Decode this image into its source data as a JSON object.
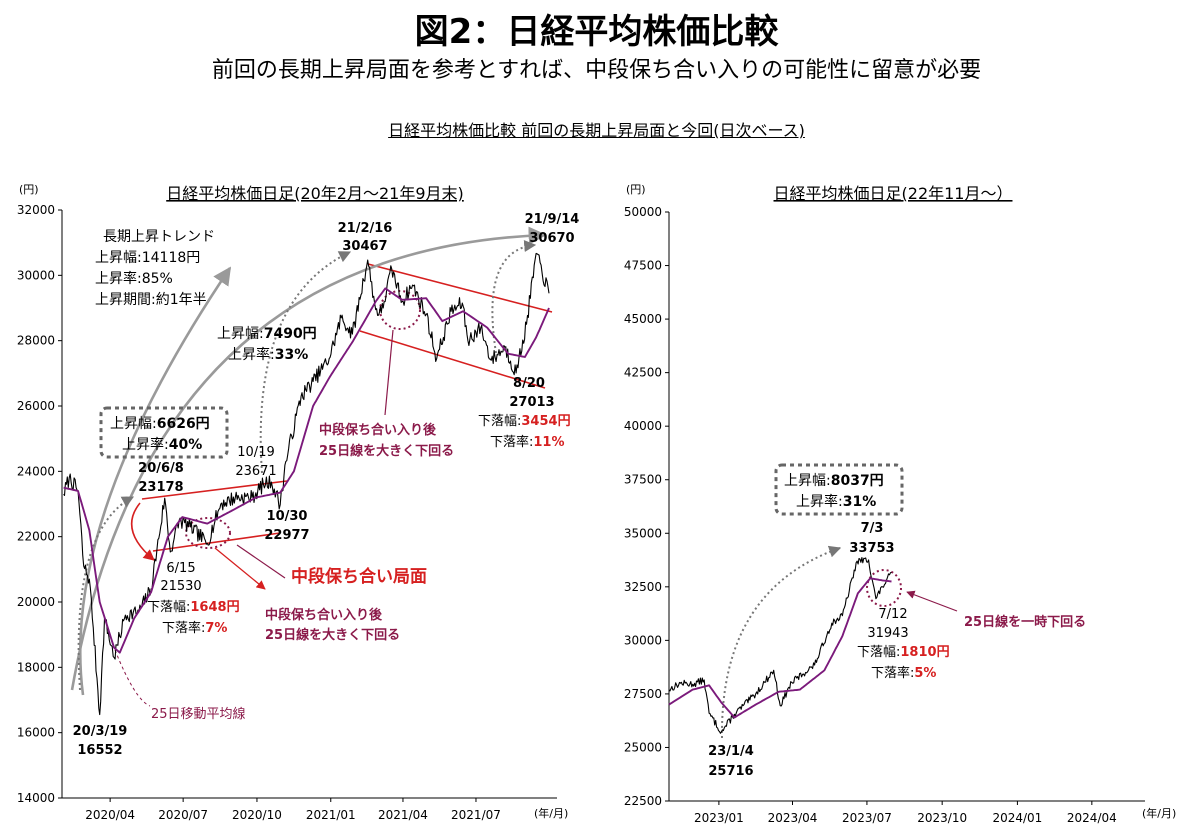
{
  "title": "図2：日経平均株価比較",
  "subtitle": "前回の長期上昇局面を参考とすれば、中段保ち合い入りの可能性に留意が必要",
  "section_title": "日経平均株価比較 前回の長期上昇局面と今回(日次ベース)",
  "colors": {
    "price": "#000000",
    "ma25": "#7b1a7b",
    "channel": "#d62020",
    "arrow": "#a0a0a0",
    "accent_text": "#8b1a4a",
    "red_text": "#d62020"
  },
  "chart_data": [
    {
      "type": "line",
      "title": "日経平均株価日足(20年2月～21年9月末)",
      "y_unit_label": "(円)",
      "x_unit_label": "(年/月)",
      "ylim": [
        14000,
        32000
      ],
      "yticks": [
        "32000",
        "30000",
        "28000",
        "26000",
        "24000",
        "22000",
        "20000",
        "18000",
        "16000",
        "14000"
      ],
      "xticks": [
        "2020/04",
        "2020/07",
        "2020/10",
        "2021/01",
        "2021/04",
        "2021/07"
      ],
      "series": [
        {
          "key": "price",
          "anchors": [
            [
              "2020-02-03",
              23300
            ],
            [
              "2020-02-10",
              23800
            ],
            [
              "2020-02-21",
              23400
            ],
            [
              "2020-02-28",
              21100
            ],
            [
              "2020-03-06",
              20700
            ],
            [
              "2020-03-11",
              19200
            ],
            [
              "2020-03-19",
              16552
            ],
            [
              "2020-03-25",
              19500
            ],
            [
              "2020-04-06",
              18300
            ],
            [
              "2020-04-20",
              19600
            ],
            [
              "2020-05-07",
              19700
            ],
            [
              "2020-05-22",
              20400
            ],
            [
              "2020-06-08",
              23178
            ],
            [
              "2020-06-15",
              21530
            ],
            [
              "2020-06-26",
              22500
            ],
            [
              "2020-07-10",
              22300
            ],
            [
              "2020-07-31",
              21800
            ],
            [
              "2020-08-17",
              23000
            ],
            [
              "2020-09-04",
              23200
            ],
            [
              "2020-09-25",
              23200
            ],
            [
              "2020-10-09",
              23600
            ],
            [
              "2020-10-19",
              23671
            ],
            [
              "2020-10-30",
              22977
            ],
            [
              "2020-11-06",
              24300
            ],
            [
              "2020-11-25",
              26300
            ],
            [
              "2020-12-10",
              26750
            ],
            [
              "2020-12-30",
              27450
            ],
            [
              "2021-01-14",
              28700
            ],
            [
              "2021-01-28",
              28200
            ],
            [
              "2021-02-16",
              30467
            ],
            [
              "2021-02-26",
              28950
            ],
            [
              "2021-03-05",
              28850
            ],
            [
              "2021-03-18",
              30200
            ],
            [
              "2021-03-31",
              29200
            ],
            [
              "2021-04-13",
              29700
            ],
            [
              "2021-04-30",
              28800
            ],
            [
              "2021-05-13",
              27450
            ],
            [
              "2021-05-31",
              28900
            ],
            [
              "2021-06-14",
              29150
            ],
            [
              "2021-06-21",
              28000
            ],
            [
              "2021-07-07",
              28400
            ],
            [
              "2021-07-20",
              27400
            ],
            [
              "2021-08-06",
              27800
            ],
            [
              "2021-08-20",
              27013
            ],
            [
              "2021-09-02",
              28500
            ],
            [
              "2021-09-14",
              30670
            ],
            [
              "2021-09-30",
              29450
            ]
          ]
        },
        {
          "key": "ma25",
          "anchors": [
            [
              "2020-02-03",
              23500
            ],
            [
              "2020-02-21",
              23400
            ],
            [
              "2020-03-06",
              22200
            ],
            [
              "2020-03-19",
              20000
            ],
            [
              "2020-04-06",
              18600
            ],
            [
              "2020-04-13",
              18450
            ],
            [
              "2020-05-01",
              19500
            ],
            [
              "2020-05-22",
              20300
            ],
            [
              "2020-06-12",
              22000
            ],
            [
              "2020-06-30",
              22600
            ],
            [
              "2020-07-31",
              22400
            ],
            [
              "2020-08-31",
              22800
            ],
            [
              "2020-09-30",
              23200
            ],
            [
              "2020-10-30",
              23350
            ],
            [
              "2020-11-16",
              24000
            ],
            [
              "2020-12-10",
              26000
            ],
            [
              "2020-12-31",
              26900
            ],
            [
              "2021-01-29",
              28000
            ],
            [
              "2021-02-26",
              29200
            ],
            [
              "2021-03-10",
              29600
            ],
            [
              "2021-03-31",
              29250
            ],
            [
              "2021-04-30",
              29300
            ],
            [
              "2021-05-20",
              28600
            ],
            [
              "2021-06-15",
              28900
            ],
            [
              "2021-07-15",
              28400
            ],
            [
              "2021-08-10",
              27600
            ],
            [
              "2021-08-31",
              27500
            ],
            [
              "2021-09-14",
              28100
            ],
            [
              "2021-09-30",
              29000
            ]
          ]
        }
      ],
      "annotations": {
        "trend_title": "長期上昇トレンド",
        "trend_width": "上昇幅:14118円",
        "trend_rate": "上昇率:85%",
        "trend_period": "上昇期間:約1年半",
        "box1_line1_label": "上昇幅:",
        "box1_line1_value": "6626円",
        "box1_line2_label": "上昇率:",
        "box1_line2_value": "40%",
        "rise2_line1_label": "上昇幅:",
        "rise2_line1_value": "7490円",
        "rise2_line2_label": "上昇率:",
        "rise2_line2_value": "33%",
        "peak1_date": "20/6/8",
        "peak1_value": "23178",
        "low1_date": "6/15",
        "low1_value": "21530",
        "fall1_label": "下落幅:",
        "fall1_value": "1648円",
        "fall1_rate_label": "下落率:",
        "fall1_rate_value": "7%",
        "p1019_date": "10/19",
        "p1019_value": "23671",
        "p1030_date": "10/30",
        "p1030_value": "22977",
        "low0_date": "20/3/19",
        "low0_value": "16552",
        "peak2_date": "21/2/16",
        "peak2_value": "30467",
        "peak3_date": "21/9/14",
        "peak3_value": "30670",
        "low2_date": "8/20",
        "low2_value": "27013",
        "fall2_label": "下落幅:",
        "fall2_value": "3454円",
        "fall2_rate_label": "下落率:",
        "fall2_rate_value": "11%",
        "note1_line1": "中段保ち合い入り後",
        "note1_line2": "25日線を大きく下回る",
        "note2_line1": "中段保ち合い入り後",
        "note2_line2": "25日線を大きく下回る",
        "phase_label": "中段保ち合い局面",
        "ma_label": "25日移動平均線"
      }
    },
    {
      "type": "line",
      "title": "日経平均株価日足(22年11月～）",
      "y_unit_label": "(円)",
      "x_unit_label": "(年/月)",
      "ylim": [
        22500,
        50000
      ],
      "yticks": [
        "50000",
        "47500",
        "45000",
        "42500",
        "40000",
        "37500",
        "35000",
        "32500",
        "30000",
        "27500",
        "25000",
        "22500"
      ],
      "xticks": [
        "2023/01",
        "2023/04",
        "2023/07",
        "2023/10",
        "2024/01",
        "2024/04"
      ],
      "series": [
        {
          "key": "price",
          "anchors": [
            [
              "2022-11-01",
              27700
            ],
            [
              "2022-11-15",
              28000
            ],
            [
              "2022-11-30",
              27950
            ],
            [
              "2022-12-14",
              28150
            ],
            [
              "2022-12-20",
              26600
            ],
            [
              "2023-01-04",
              25716
            ],
            [
              "2023-01-20",
              26550
            ],
            [
              "2023-02-15",
              27500
            ],
            [
              "2023-03-09",
              28600
            ],
            [
              "2023-03-17",
              26950
            ],
            [
              "2023-03-31",
              28040
            ],
            [
              "2023-04-28",
              28850
            ],
            [
              "2023-05-19",
              30800
            ],
            [
              "2023-06-01",
              31150
            ],
            [
              "2023-06-19",
              33700
            ],
            [
              "2023-07-03",
              33753
            ],
            [
              "2023-07-12",
              31943
            ],
            [
              "2023-07-20",
              32500
            ],
            [
              "2023-07-31",
              33170
            ]
          ]
        },
        {
          "key": "ma25",
          "anchors": [
            [
              "2022-11-01",
              27000
            ],
            [
              "2022-11-30",
              27700
            ],
            [
              "2022-12-20",
              27900
            ],
            [
              "2023-01-04",
              27100
            ],
            [
              "2023-01-20",
              26400
            ],
            [
              "2023-02-15",
              27000
            ],
            [
              "2023-03-15",
              27600
            ],
            [
              "2023-04-10",
              27700
            ],
            [
              "2023-05-10",
              28600
            ],
            [
              "2023-06-01",
              30200
            ],
            [
              "2023-06-20",
              32200
            ],
            [
              "2023-07-05",
              32900
            ],
            [
              "2023-07-20",
              32800
            ],
            [
              "2023-07-31",
              32750
            ]
          ]
        }
      ],
      "annotations": {
        "box_line1_label": "上昇幅:",
        "box_line1_value": "8037円",
        "box_line2_label": "上昇率:",
        "box_line2_value": "31%",
        "peak_date": "7/3",
        "peak_value": "33753",
        "low_date": "7/12",
        "low_value": "31943",
        "fall_label": "下落幅:",
        "fall_value": "1810円",
        "fall_rate_label": "下落率:",
        "fall_rate_value": "5%",
        "low0_date": "23/1/4",
        "low0_value": "25716",
        "note": "25日線を一時下回る"
      }
    }
  ]
}
